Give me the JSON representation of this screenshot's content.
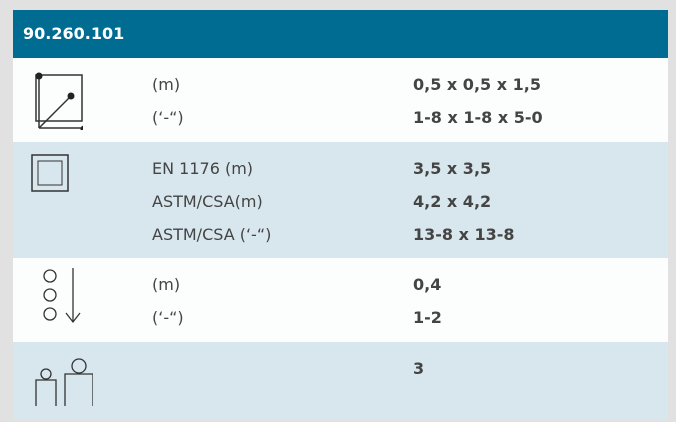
{
  "header": {
    "title": "90.260.101"
  },
  "rows": [
    {
      "icon": "dimensions-cube-icon",
      "labels": [
        "(m)",
        "(‘-“)"
      ],
      "values": [
        "0,5 x 0,5 x 1,5",
        "1-8 x 1-8 x 5-0"
      ]
    },
    {
      "icon": "square-area-icon",
      "labels": [
        "EN 1176 (m)",
        "ASTM/CSA(m)",
        "ASTM/CSA (‘-“)"
      ],
      "values": [
        "3,5 x 3,5",
        "4,2 x 4,2",
        "13-8 x 13-8"
      ]
    },
    {
      "icon": "fall-height-icon",
      "labels": [
        "(m)",
        "(‘-“)"
      ],
      "values": [
        "0,4",
        "1-2"
      ]
    },
    {
      "icon": "users-icon",
      "labels": [],
      "values": [
        "3"
      ]
    }
  ],
  "colors": {
    "header": "#006c92",
    "alt_row": "#d8e7ee",
    "text": "#444444"
  }
}
